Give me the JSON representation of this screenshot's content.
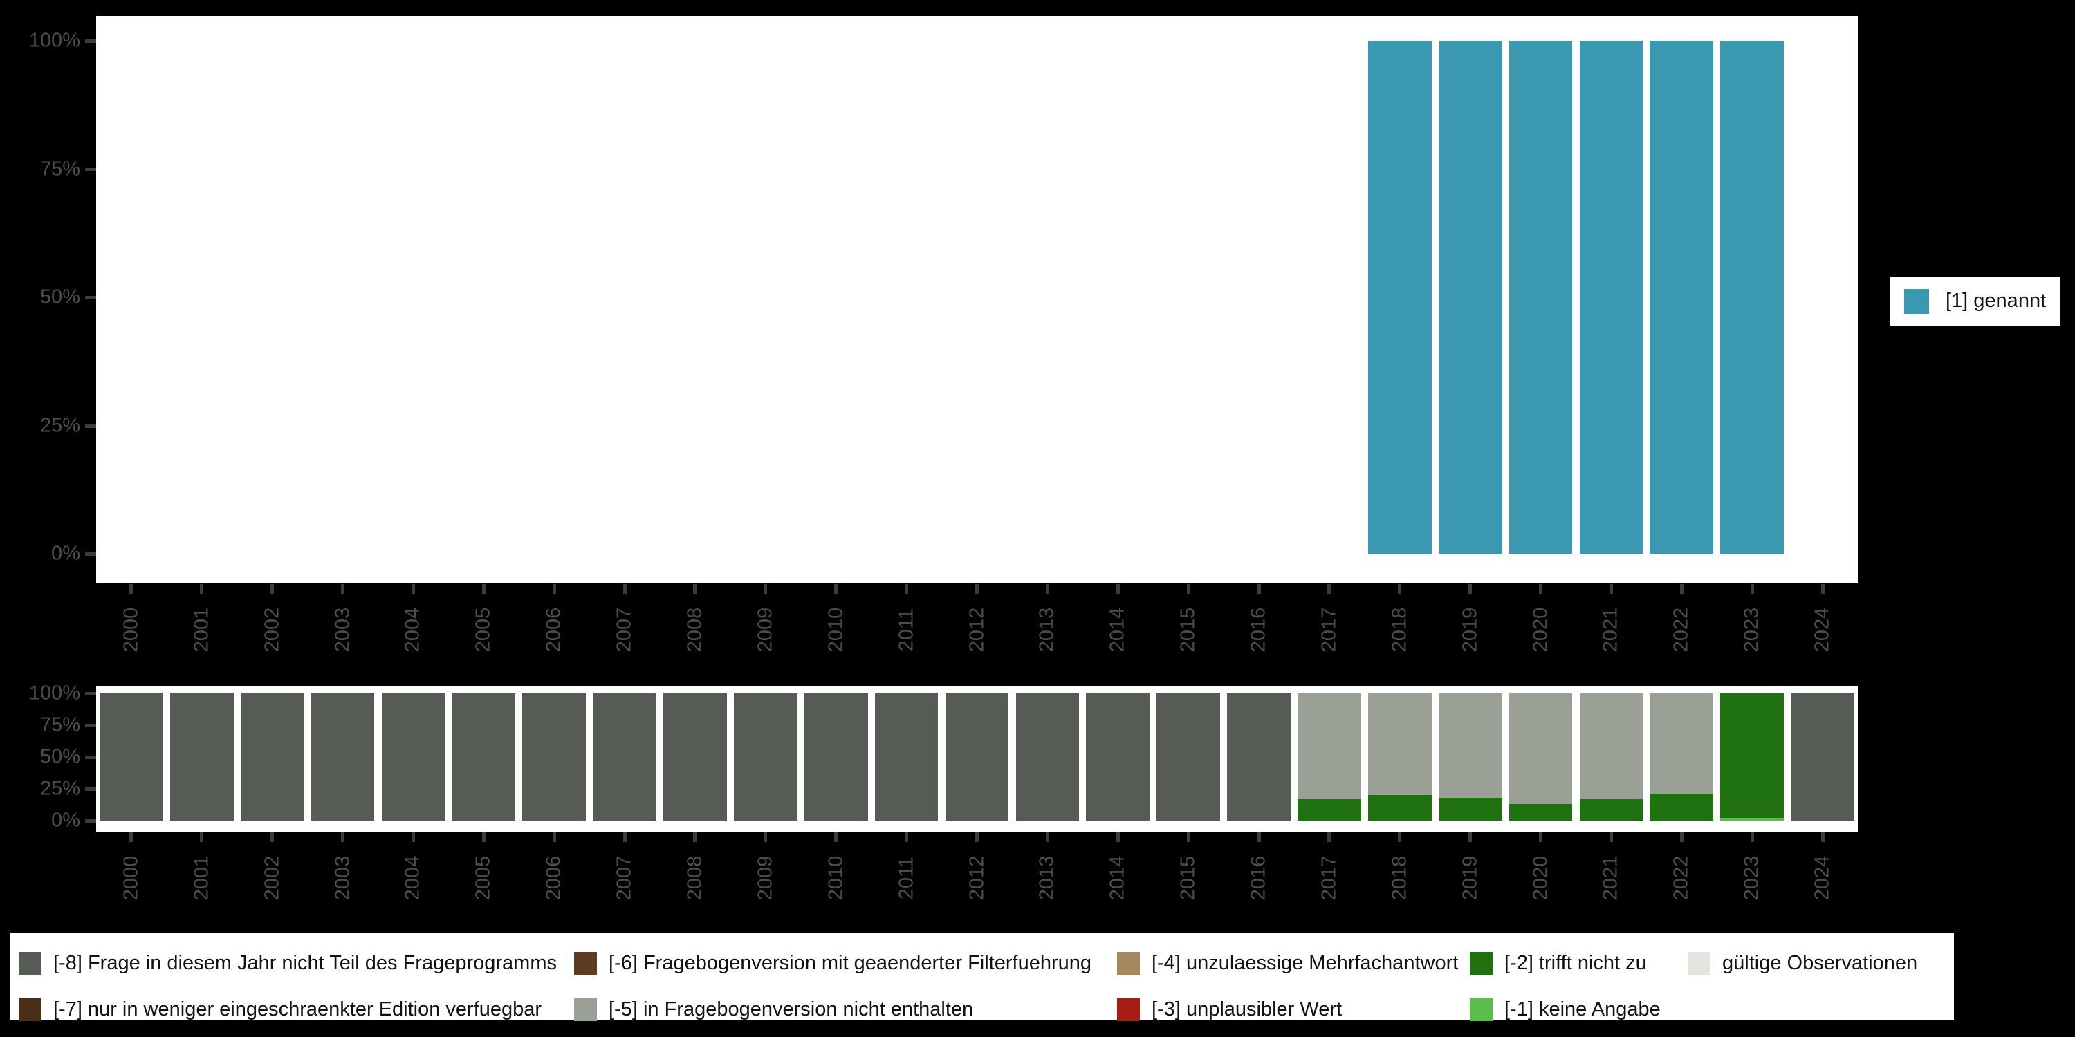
{
  "page": {
    "background": "#000000",
    "plot_background": "#ffffff"
  },
  "colors": {
    "genannt_blue": "#3a99b1",
    "na_dark_gray": "#565c55",
    "na_light_gray": "#9aa096",
    "na_dark_green": "#20710f",
    "na_light_green": "#5abf4a",
    "na_dark_brown": "#4a2f17",
    "na_brown": "#5e3b1e",
    "na_tan": "#a6875e",
    "na_red": "#a41c12",
    "na_pale": "#e1e5de",
    "axis_text": "#4d4d4d",
    "tick_mark": "#3c3c3c"
  },
  "top_chart": {
    "y_ticks": [
      "100%",
      "75%",
      "50%",
      "25%",
      "0%"
    ],
    "legend": {
      "label": "[1] genannt",
      "color": "#3a99b1"
    }
  },
  "bottom_chart": {
    "y_ticks": [
      "100%",
      "75%",
      "50%",
      "25%",
      "0%"
    ]
  },
  "legend_bottom": {
    "columns": [
      [
        {
          "label": "[-8] Frage in diesem Jahr nicht Teil des Frageprogramms",
          "color": "#565c55"
        },
        {
          "label": "[-7] nur in weniger eingeschraenkter Edition verfuegbar",
          "color": "#4a2f17"
        }
      ],
      [
        {
          "label": "[-6] Fragebogenversion mit geaenderter Filterfuehrung",
          "color": "#5e3b1e"
        },
        {
          "label": "[-5] in Fragebogenversion nicht enthalten",
          "color": "#9aa096"
        }
      ],
      [
        {
          "label": "[-4] unzulaessige Mehrfachantwort",
          "color": "#a6875e"
        },
        {
          "label": "[-3] unplausibler Wert",
          "color": "#a41c12"
        }
      ],
      [
        {
          "label": "[-2] trifft nicht zu",
          "color": "#20710f"
        },
        {
          "label": "[-1] keine Angabe",
          "color": "#5abf4a"
        }
      ],
      [
        {
          "label": "gültige Observationen",
          "color": "#e1e5de"
        }
      ]
    ]
  },
  "chart_data": [
    {
      "type": "bar",
      "title": "",
      "xlabel": "",
      "ylabel": "",
      "ylim": [
        0,
        100
      ],
      "y_tick_labels": [
        "0%",
        "25%",
        "50%",
        "75%",
        "100%"
      ],
      "grid": false,
      "legend_position": "right",
      "categories": [
        "2000",
        "2001",
        "2002",
        "2003",
        "2004",
        "2005",
        "2006",
        "2007",
        "2008",
        "2009",
        "2010",
        "2011",
        "2012",
        "2013",
        "2014",
        "2015",
        "2016",
        "2017",
        "2018",
        "2019",
        "2020",
        "2021",
        "2022",
        "2023",
        "2024"
      ],
      "series": [
        {
          "name": "[1] genannt",
          "color": "#3a99b1",
          "values": [
            0,
            0,
            0,
            0,
            0,
            0,
            0,
            0,
            0,
            0,
            0,
            0,
            0,
            0,
            0,
            0,
            0,
            0,
            100,
            100,
            100,
            100,
            100,
            100,
            0
          ]
        }
      ]
    },
    {
      "type": "stacked-bar",
      "title": "",
      "xlabel": "",
      "ylabel": "",
      "ylim": [
        0,
        100
      ],
      "y_tick_labels": [
        "0%",
        "25%",
        "50%",
        "75%",
        "100%"
      ],
      "grid": false,
      "legend_position": "bottom",
      "stack_bottom_to_top": true,
      "categories": [
        "2000",
        "2001",
        "2002",
        "2003",
        "2004",
        "2005",
        "2006",
        "2007",
        "2008",
        "2009",
        "2010",
        "2011",
        "2012",
        "2013",
        "2014",
        "2015",
        "2016",
        "2017",
        "2018",
        "2019",
        "2020",
        "2021",
        "2022",
        "2023",
        "2024"
      ],
      "series": [
        {
          "name": "[-1] keine Angabe",
          "color": "#5abf4a",
          "values": [
            0,
            0,
            0,
            0,
            0,
            0,
            0,
            0,
            0,
            0,
            0,
            0,
            0,
            0,
            0,
            0,
            0,
            0,
            0,
            0,
            0,
            0,
            0,
            2,
            0
          ]
        },
        {
          "name": "[-2] trifft nicht zu",
          "color": "#20710f",
          "values": [
            0,
            0,
            0,
            0,
            0,
            0,
            0,
            0,
            0,
            0,
            0,
            0,
            0,
            0,
            0,
            0,
            0,
            17,
            20,
            18,
            13,
            17,
            21,
            98,
            0
          ]
        },
        {
          "name": "[-5] in Fragebogenversion nicht enthalten",
          "color": "#9aa096",
          "values": [
            0,
            0,
            0,
            0,
            0,
            0,
            0,
            0,
            0,
            0,
            0,
            0,
            0,
            0,
            0,
            0,
            0,
            83,
            80,
            82,
            87,
            83,
            79,
            0,
            0
          ]
        },
        {
          "name": "[-8] Frage in diesem Jahr nicht Teil des Frageprogramms",
          "color": "#565c55",
          "values": [
            100,
            100,
            100,
            100,
            100,
            100,
            100,
            100,
            100,
            100,
            100,
            100,
            100,
            100,
            100,
            100,
            100,
            0,
            0,
            0,
            0,
            0,
            0,
            0,
            100
          ]
        }
      ]
    }
  ]
}
